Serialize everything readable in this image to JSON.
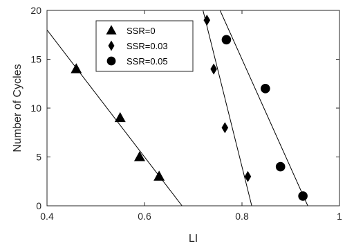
{
  "chart_data": {
    "type": "scatter",
    "xlabel": "LI",
    "ylabel": "Number of Cycles",
    "xlim": [
      0.4,
      1.0
    ],
    "ylim": [
      0,
      20
    ],
    "xticks": [
      "0.4",
      "0.6",
      "0.8",
      "1"
    ],
    "yticks": [
      "0",
      "5",
      "10",
      "15",
      "20"
    ],
    "grid": false,
    "legend_position": "top-left",
    "series": [
      {
        "name": "SSR=0",
        "marker": "triangle",
        "color": "#000000",
        "points": [
          [
            0.46,
            14
          ],
          [
            0.55,
            9
          ],
          [
            0.59,
            5
          ],
          [
            0.63,
            3
          ]
        ],
        "fit_line": [
          [
            0.4,
            18
          ],
          [
            0.677,
            0
          ]
        ]
      },
      {
        "name": "SSR=0.03",
        "marker": "diamond",
        "color": "#000000",
        "points": [
          [
            0.728,
            19
          ],
          [
            0.742,
            14
          ],
          [
            0.765,
            8
          ],
          [
            0.812,
            3
          ]
        ],
        "fit_line": [
          [
            0.72,
            20
          ],
          [
            0.82,
            0
          ]
        ]
      },
      {
        "name": "SSR=0.05",
        "marker": "circle",
        "color": "#000000",
        "points": [
          [
            0.768,
            17
          ],
          [
            0.848,
            12
          ],
          [
            0.879,
            4
          ],
          [
            0.925,
            1
          ]
        ],
        "fit_line": [
          [
            0.755,
            20
          ],
          [
            0.935,
            0
          ]
        ]
      }
    ]
  }
}
